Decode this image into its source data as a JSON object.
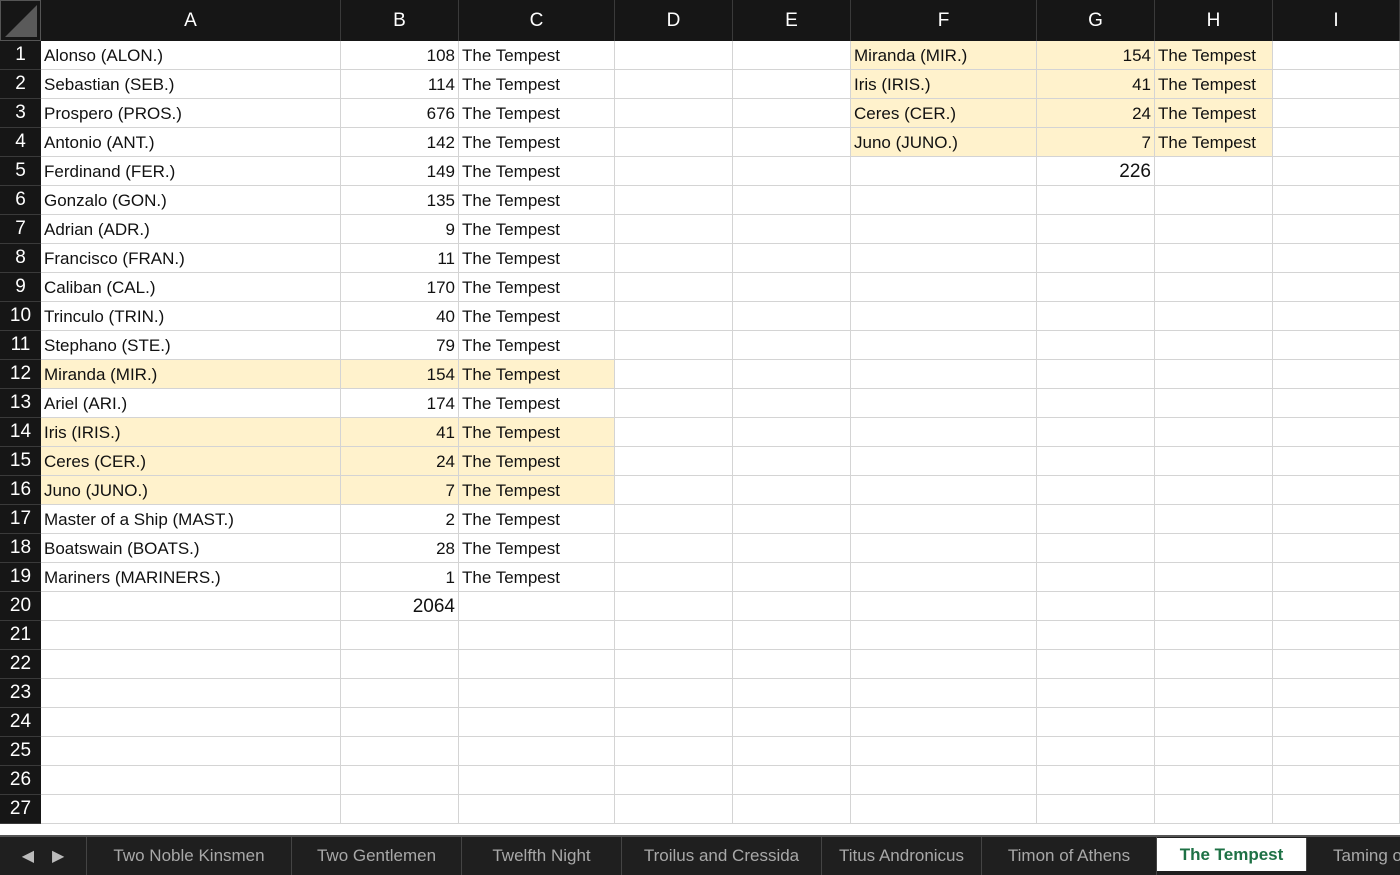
{
  "columns": [
    "A",
    "B",
    "C",
    "D",
    "E",
    "F",
    "G",
    "H",
    "I"
  ],
  "highlight_color": "#fff2cc",
  "rows": [
    {
      "n": "1",
      "cells": {
        "A": "Alonso (ALON.)",
        "B": "108",
        "C": "The Tempest",
        "F": "Miranda (MIR.)",
        "G": "154",
        "H": "The Tempest"
      },
      "hl": [
        "F",
        "G",
        "H"
      ]
    },
    {
      "n": "2",
      "cells": {
        "A": "Sebastian (SEB.)",
        "B": "114",
        "C": "The Tempest",
        "F": "Iris (IRIS.)",
        "G": "41",
        "H": "The Tempest"
      },
      "hl": [
        "F",
        "G",
        "H"
      ]
    },
    {
      "n": "3",
      "cells": {
        "A": "Prospero (PROS.)",
        "B": "676",
        "C": "The Tempest",
        "F": "Ceres (CER.)",
        "G": "24",
        "H": "The Tempest"
      },
      "hl": [
        "F",
        "G",
        "H"
      ]
    },
    {
      "n": "4",
      "cells": {
        "A": "Antonio (ANT.)",
        "B": "142",
        "C": "The Tempest",
        "F": "Juno (JUNO.)",
        "G": "7",
        "H": "The Tempest"
      },
      "hl": [
        "F",
        "G",
        "H"
      ]
    },
    {
      "n": "5",
      "cells": {
        "A": "Ferdinand (FER.)",
        "B": "149",
        "C": "The Tempest",
        "G": "226"
      },
      "hl": [],
      "total": [
        "G"
      ]
    },
    {
      "n": "6",
      "cells": {
        "A": "Gonzalo (GON.)",
        "B": "135",
        "C": "The Tempest"
      },
      "hl": []
    },
    {
      "n": "7",
      "cells": {
        "A": "Adrian (ADR.)",
        "B": "9",
        "C": "The Tempest"
      },
      "hl": []
    },
    {
      "n": "8",
      "cells": {
        "A": "Francisco (FRAN.)",
        "B": "11",
        "C": "The Tempest"
      },
      "hl": []
    },
    {
      "n": "9",
      "cells": {
        "A": "Caliban (CAL.)",
        "B": "170",
        "C": "The Tempest"
      },
      "hl": []
    },
    {
      "n": "10",
      "cells": {
        "A": "Trinculo (TRIN.)",
        "B": "40",
        "C": "The Tempest"
      },
      "hl": []
    },
    {
      "n": "11",
      "cells": {
        "A": "Stephano (STE.)",
        "B": "79",
        "C": "The Tempest"
      },
      "hl": []
    },
    {
      "n": "12",
      "cells": {
        "A": "Miranda (MIR.)",
        "B": "154",
        "C": "The Tempest"
      },
      "hl": [
        "A",
        "B",
        "C"
      ]
    },
    {
      "n": "13",
      "cells": {
        "A": "Ariel (ARI.)",
        "B": "174",
        "C": "The Tempest"
      },
      "hl": []
    },
    {
      "n": "14",
      "cells": {
        "A": "Iris (IRIS.)",
        "B": "41",
        "C": "The Tempest"
      },
      "hl": [
        "A",
        "B",
        "C"
      ]
    },
    {
      "n": "15",
      "cells": {
        "A": "Ceres (CER.)",
        "B": "24",
        "C": "The Tempest"
      },
      "hl": [
        "A",
        "B",
        "C"
      ]
    },
    {
      "n": "16",
      "cells": {
        "A": "Juno (JUNO.)",
        "B": "7",
        "C": "The Tempest"
      },
      "hl": [
        "A",
        "B",
        "C"
      ]
    },
    {
      "n": "17",
      "cells": {
        "A": "Master of a Ship (MAST.)",
        "B": "2",
        "C": "The Tempest"
      },
      "hl": []
    },
    {
      "n": "18",
      "cells": {
        "A": "Boatswain (BOATS.)",
        "B": "28",
        "C": "The Tempest"
      },
      "hl": []
    },
    {
      "n": "19",
      "cells": {
        "A": "Mariners (MARINERS.)",
        "B": "1",
        "C": "The Tempest"
      },
      "hl": []
    },
    {
      "n": "20",
      "cells": {
        "B": "2064"
      },
      "hl": [],
      "total": [
        "B"
      ]
    },
    {
      "n": "21",
      "cells": {},
      "hl": []
    },
    {
      "n": "22",
      "cells": {},
      "hl": []
    },
    {
      "n": "23",
      "cells": {},
      "hl": []
    },
    {
      "n": "24",
      "cells": {},
      "hl": []
    },
    {
      "n": "25",
      "cells": {},
      "hl": []
    },
    {
      "n": "26",
      "cells": {},
      "hl": []
    },
    {
      "n": "27",
      "cells": {},
      "hl": []
    }
  ],
  "sheet_tabs": [
    {
      "label": "Two Noble Kinsmen",
      "active": false
    },
    {
      "label": "Two Gentlemen",
      "active": false
    },
    {
      "label": "Twelfth Night",
      "active": false
    },
    {
      "label": "Troilus and Cressida",
      "active": false
    },
    {
      "label": "Titus Andronicus",
      "active": false
    },
    {
      "label": "Timon of Athens",
      "active": false
    },
    {
      "label": "The Tempest",
      "active": true
    },
    {
      "label": "Taming of the Shrew",
      "active": false
    }
  ],
  "nav_icons": [
    "triangle-left-icon",
    "triangle-right-icon"
  ],
  "active_tab_color": "#1e7145"
}
